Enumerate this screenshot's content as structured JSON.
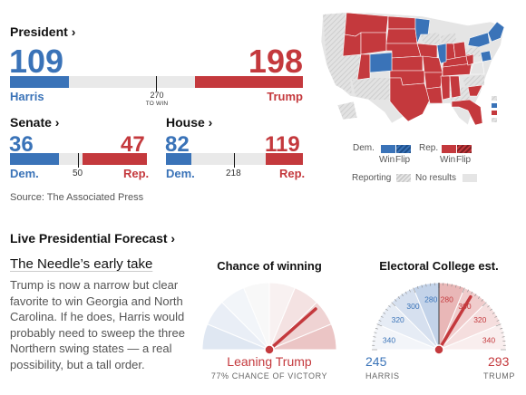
{
  "president": {
    "title": "President ›",
    "dem_count": "109",
    "rep_count": "198",
    "dem_name": "Harris",
    "rep_name": "Trump",
    "threshold": "270",
    "threshold_sub": "TO WIN",
    "dem_value": 109,
    "rep_value": 198,
    "total": 538
  },
  "senate": {
    "title": "Senate ›",
    "dem_count": "36",
    "rep_count": "47",
    "dem_label": "Dem.",
    "rep_label": "Rep.",
    "threshold": "50",
    "dem_value": 36,
    "rep_value": 47,
    "total": 100
  },
  "house": {
    "title": "House ›",
    "dem_count": "82",
    "rep_count": "119",
    "dem_label": "Dem.",
    "rep_label": "Rep.",
    "threshold": "218",
    "dem_value": 82,
    "rep_value": 119,
    "total": 435
  },
  "source": "Source: The Associated Press",
  "map_legend": {
    "dem": "Dem.",
    "rep": "Rep.",
    "win": "Win",
    "flip": "Flip",
    "win2": "Win",
    "flip2": "Flip",
    "reporting": "Reporting",
    "no_results": "No results"
  },
  "colors": {
    "dem": "#3a73b8",
    "rep": "#c4393d",
    "dem_light": "#dfe7f2",
    "rep_light": "#f4d9d9",
    "gray": "#e9e9e9"
  },
  "forecast": {
    "heading": "Live Presidential Forecast ›",
    "needle_title": "The Needle’s early take",
    "body": "Trump is now a narrow but clear favorite to win Georgia and North Carolina. If he does, Harris would probably need to sweep the three Northern swing states — a real possibility, but a tall order.",
    "chance_title": "Chance of winning",
    "chance_label": "Leaning Trump",
    "chance_sub": "77% CHANCE OF VICTORY",
    "chance_value": 0.77,
    "ec_title": "Electoral College est.",
    "ec_harris": "245",
    "ec_trump": "293",
    "ec_harris_label": "HARRIS",
    "ec_trump_label": "TRUMP",
    "ec_trump_value": 293,
    "ec_ticks": [
      "340",
      "320",
      "300",
      "280",
      "280",
      "300",
      "320",
      "340"
    ]
  }
}
